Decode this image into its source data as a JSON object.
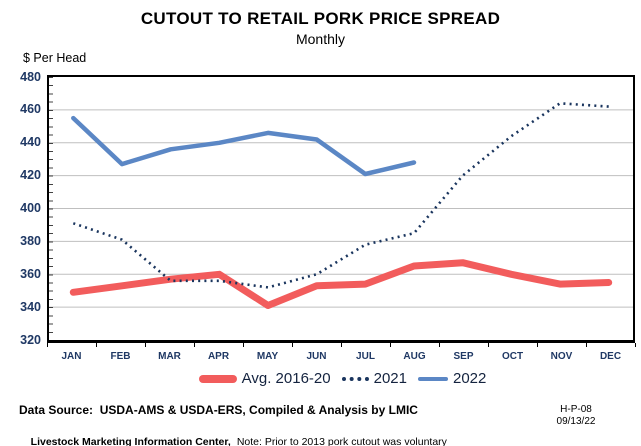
{
  "chart_data": {
    "type": "line",
    "title": "CUTOUT TO RETAIL PORK PRICE SPREAD",
    "subtitle": "Monthly",
    "ylabel": "$ Per Head",
    "xlabel": "",
    "ylim": [
      320,
      480
    ],
    "ytick_step": 20,
    "y_minor_tick_step": 5,
    "grid": true,
    "legend_position": "bottom",
    "categories": [
      "JAN",
      "FEB",
      "MAR",
      "APR",
      "MAY",
      "JUN",
      "JUL",
      "AUG",
      "SEP",
      "OCT",
      "NOV",
      "DEC"
    ],
    "series": [
      {
        "name": "Avg. 2016-20",
        "style": "thick",
        "color": "#f25c5c",
        "values": [
          349,
          353,
          357,
          360,
          341,
          353,
          354,
          365,
          367,
          360,
          354,
          355
        ]
      },
      {
        "name": "2021",
        "style": "dotted",
        "color": "#1a355e",
        "values": [
          391,
          381,
          356,
          356,
          352,
          360,
          378,
          385,
          420,
          444,
          464,
          462
        ]
      },
      {
        "name": "2022",
        "style": "solid",
        "color": "#5b87c5",
        "values": [
          455,
          427,
          436,
          440,
          446,
          442,
          421,
          428
        ]
      }
    ]
  },
  "footer": {
    "source_line": "Data Source:  USDA-AMS & USDA-ERS, Compiled & Analysis by LMIC",
    "org": "Livestock Marketing Information Center,",
    "note": "Note: Prior to 2013 pork cutout was voluntary",
    "ref_code": "H-P-08",
    "date": "09/13/22"
  },
  "colors": {
    "axis_text": "#1f3864",
    "gridline": "#bfbfbf",
    "axis_line": "#000000",
    "text": "#000000"
  }
}
